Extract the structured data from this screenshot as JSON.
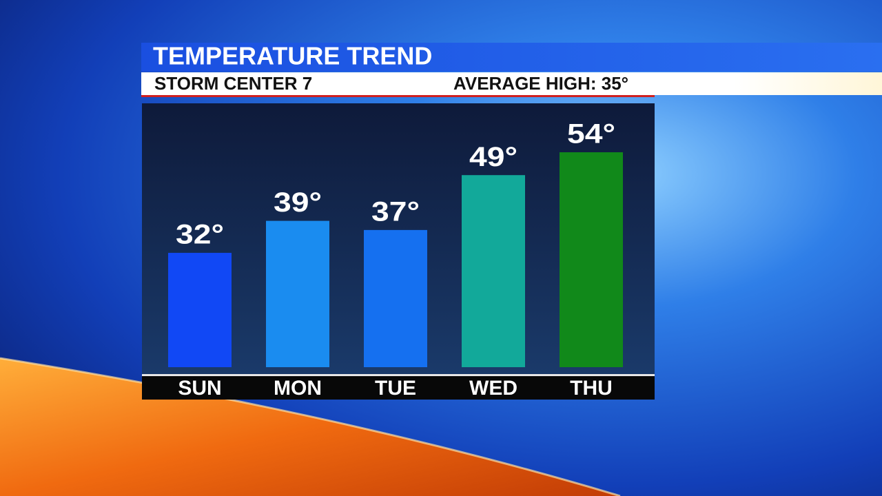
{
  "chart_data": {
    "type": "bar",
    "title": "TEMPERATURE TREND",
    "subtitle": "STORM CENTER 7",
    "annotation": "AVERAGE HIGH: 35°",
    "categories": [
      "SUN",
      "MON",
      "TUE",
      "WED",
      "THU"
    ],
    "values": [
      32,
      39,
      37,
      49,
      54
    ],
    "value_labels": [
      "32°",
      "39°",
      "37°",
      "49°",
      "54°"
    ],
    "colors": [
      "#1148f5",
      "#1a8cf0",
      "#1570f0",
      "#12a99a",
      "#11891a"
    ],
    "ylim": [
      7,
      65
    ]
  }
}
